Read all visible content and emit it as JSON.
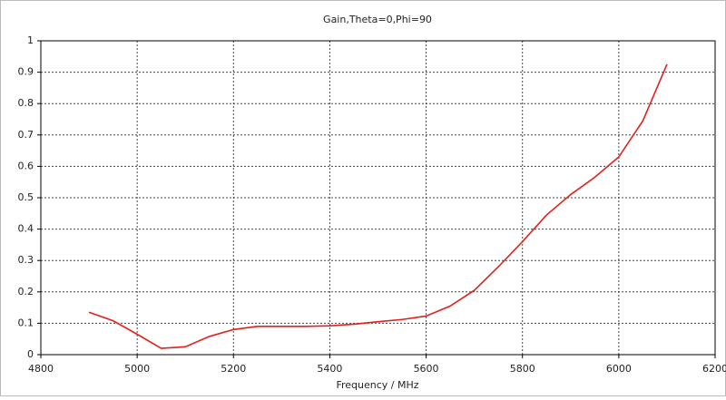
{
  "chart_data": {
    "type": "line",
    "title": "Gain,Theta=0,Phi=90",
    "x_label": "Frequency / MHz",
    "x": [
      4900,
      4950,
      5000,
      5050,
      5100,
      5150,
      5200,
      5250,
      5300,
      5350,
      5400,
      5450,
      5500,
      5550,
      5600,
      5650,
      5700,
      5750,
      5800,
      5850,
      5900,
      5950,
      6000,
      6050,
      6100
    ],
    "values": [
      0.135,
      0.108,
      0.065,
      0.02,
      0.025,
      0.058,
      0.08,
      0.09,
      0.09,
      0.09,
      0.092,
      0.097,
      0.105,
      0.112,
      0.123,
      0.155,
      0.205,
      0.28,
      0.36,
      0.445,
      0.51,
      0.565,
      0.63,
      0.745,
      0.925
    ],
    "color": "#e0201c",
    "xlim": [
      4800,
      6200
    ],
    "xticks": [
      4800,
      5000,
      5200,
      5400,
      5600,
      5800,
      6000,
      6200
    ],
    "ylim": [
      0,
      1
    ],
    "yticks": [
      0,
      0.1,
      0.2,
      0.3,
      0.4,
      0.5,
      0.6,
      0.7,
      0.8,
      0.9,
      1
    ],
    "grid": true
  }
}
